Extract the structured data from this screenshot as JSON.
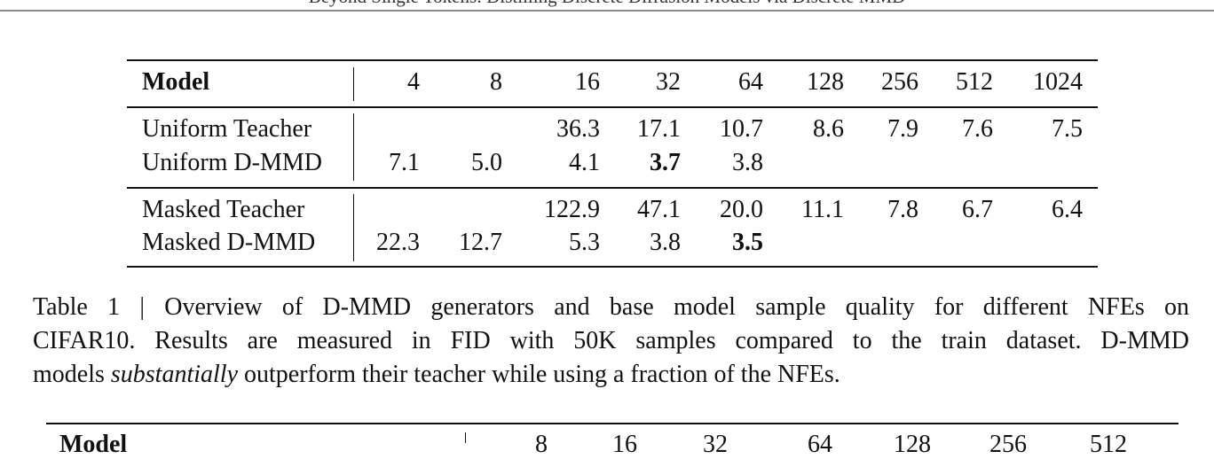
{
  "header": {
    "running_title": "Beyond Single Tokens: Distilling Discrete Diffusion Models via Discrete MMD"
  },
  "table1": {
    "columns": [
      "Model",
      "4",
      "8",
      "16",
      "32",
      "64",
      "128",
      "256",
      "512",
      "1024"
    ],
    "groups": [
      [
        {
          "label": "Uniform Teacher",
          "cells": [
            null,
            null,
            "36.3",
            "17.1",
            "10.7",
            "8.6",
            "7.9",
            "7.6",
            "7.5"
          ]
        },
        {
          "label": "Uniform D-MMD",
          "cells": [
            "7.1",
            "5.0",
            "4.1",
            "3.7",
            "3.8",
            null,
            null,
            null,
            null
          ],
          "bold": 3
        }
      ],
      [
        {
          "label": "Masked Teacher",
          "cells": [
            null,
            null,
            "122.9",
            "47.1",
            "20.0",
            "11.1",
            "7.8",
            "6.7",
            "6.4"
          ]
        },
        {
          "label": "Masked D-MMD",
          "cells": [
            "22.3",
            "12.7",
            "5.3",
            "3.8",
            "3.5",
            null,
            null,
            null,
            null
          ],
          "bold": 4
        }
      ]
    ]
  },
  "caption": {
    "lines": [
      [
        {
          "text": "Table 1 | Overview of D-MMD generators and base model sample quality for different NFEs on"
        }
      ],
      [
        {
          "text": "CIFAR10. Results are measured in FID with 50K samples compared to the train dataset. D-MMD"
        }
      ],
      [
        {
          "text": "models "
        },
        {
          "text": "substantially",
          "italic": true
        },
        {
          "text": " outperform their teacher while using a fraction of the NFEs."
        }
      ]
    ]
  },
  "table2": {
    "columns": [
      "Model",
      "8",
      "16",
      "32",
      "64",
      "128",
      "256",
      "512"
    ]
  }
}
